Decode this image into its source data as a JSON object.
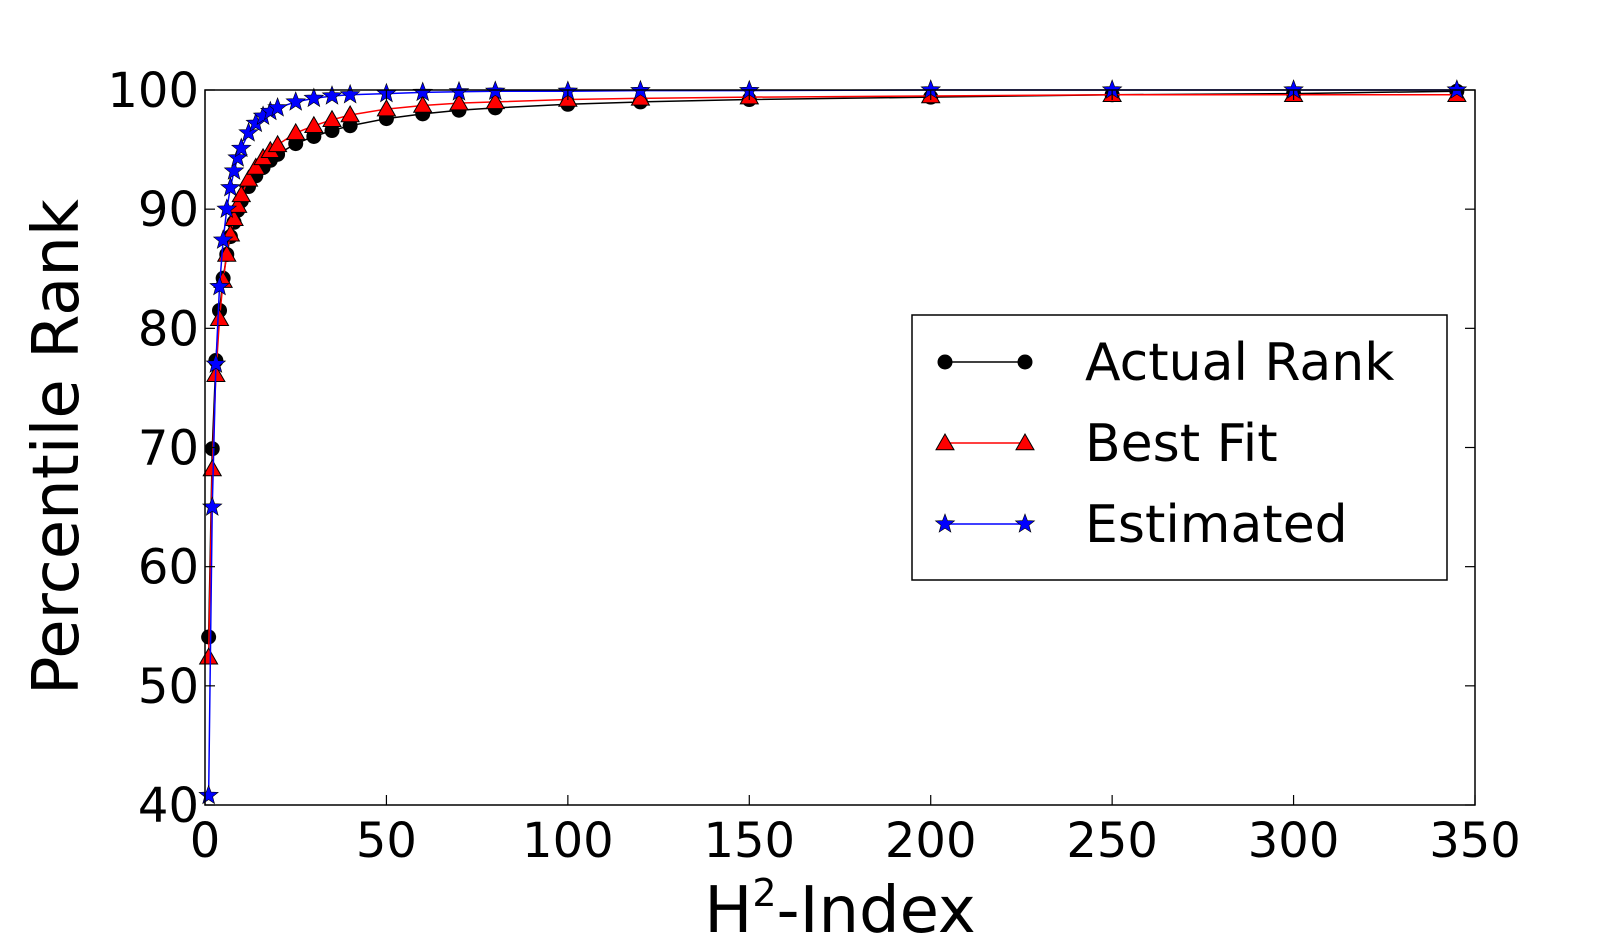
{
  "chart_data": {
    "type": "line",
    "title": "",
    "xlabel": "H²-Index",
    "xlabel_base": "H",
    "xlabel_sup": "2",
    "xlabel_rest": "-Index",
    "ylabel": "Percentile Rank",
    "xlim": [
      0,
      350
    ],
    "ylim": [
      40,
      100
    ],
    "x_ticks": [
      0,
      50,
      100,
      150,
      200,
      250,
      300,
      350
    ],
    "y_ticks": [
      40,
      50,
      60,
      70,
      80,
      90,
      100
    ],
    "x_tick_labels": [
      "0",
      "50",
      "100",
      "150",
      "200",
      "250",
      "300",
      "350"
    ],
    "y_tick_labels": [
      "40",
      "50",
      "60",
      "70",
      "80",
      "90",
      "100"
    ],
    "grid": false,
    "legend_position": "center-right",
    "series": [
      {
        "name": "Actual Rank",
        "color": "#000000",
        "marker": "circle",
        "x": [
          1,
          2,
          3,
          4,
          5,
          6,
          7,
          8,
          9,
          10,
          12,
          14,
          16,
          18,
          20,
          25,
          30,
          35,
          40,
          50,
          60,
          70,
          80,
          100,
          120,
          150,
          200,
          250,
          300,
          345
        ],
        "y": [
          54.1,
          69.9,
          77.3,
          81.5,
          84.2,
          86.2,
          87.7,
          88.9,
          89.9,
          90.7,
          91.9,
          92.8,
          93.5,
          94.1,
          94.6,
          95.5,
          96.1,
          96.6,
          97.0,
          97.6,
          98.0,
          98.3,
          98.5,
          98.8,
          99.0,
          99.2,
          99.4,
          99.6,
          99.7,
          99.9
        ]
      },
      {
        "name": "Best Fit",
        "color": "#ff0000",
        "marker": "triangle",
        "x": [
          1,
          2,
          3,
          4,
          5,
          6,
          7,
          8,
          9,
          10,
          12,
          14,
          16,
          18,
          20,
          25,
          30,
          35,
          40,
          50,
          60,
          70,
          80,
          100,
          120,
          150,
          200,
          250,
          300,
          345
        ],
        "y": [
          52.4,
          68.2,
          76.1,
          80.8,
          84.0,
          86.2,
          87.9,
          89.2,
          90.3,
          91.2,
          92.5,
          93.5,
          94.3,
          94.9,
          95.4,
          96.4,
          97.0,
          97.5,
          97.9,
          98.4,
          98.7,
          98.9,
          99.0,
          99.2,
          99.3,
          99.4,
          99.5,
          99.6,
          99.6,
          99.6
        ]
      },
      {
        "name": "Estimated",
        "color": "#0000ff",
        "marker": "star",
        "x": [
          1,
          2,
          3,
          4,
          5,
          6,
          7,
          8,
          9,
          10,
          12,
          14,
          16,
          18,
          20,
          25,
          30,
          35,
          40,
          50,
          60,
          70,
          80,
          100,
          120,
          150,
          200,
          250,
          300,
          345
        ],
        "y": [
          40.8,
          65.0,
          77.0,
          83.5,
          87.4,
          90.0,
          91.8,
          93.2,
          94.3,
          95.1,
          96.4,
          97.2,
          97.8,
          98.2,
          98.5,
          99.0,
          99.3,
          99.5,
          99.6,
          99.7,
          99.8,
          99.85,
          99.9,
          99.9,
          99.95,
          99.95,
          100.0,
          100.0,
          100.0,
          100.0
        ]
      }
    ]
  }
}
